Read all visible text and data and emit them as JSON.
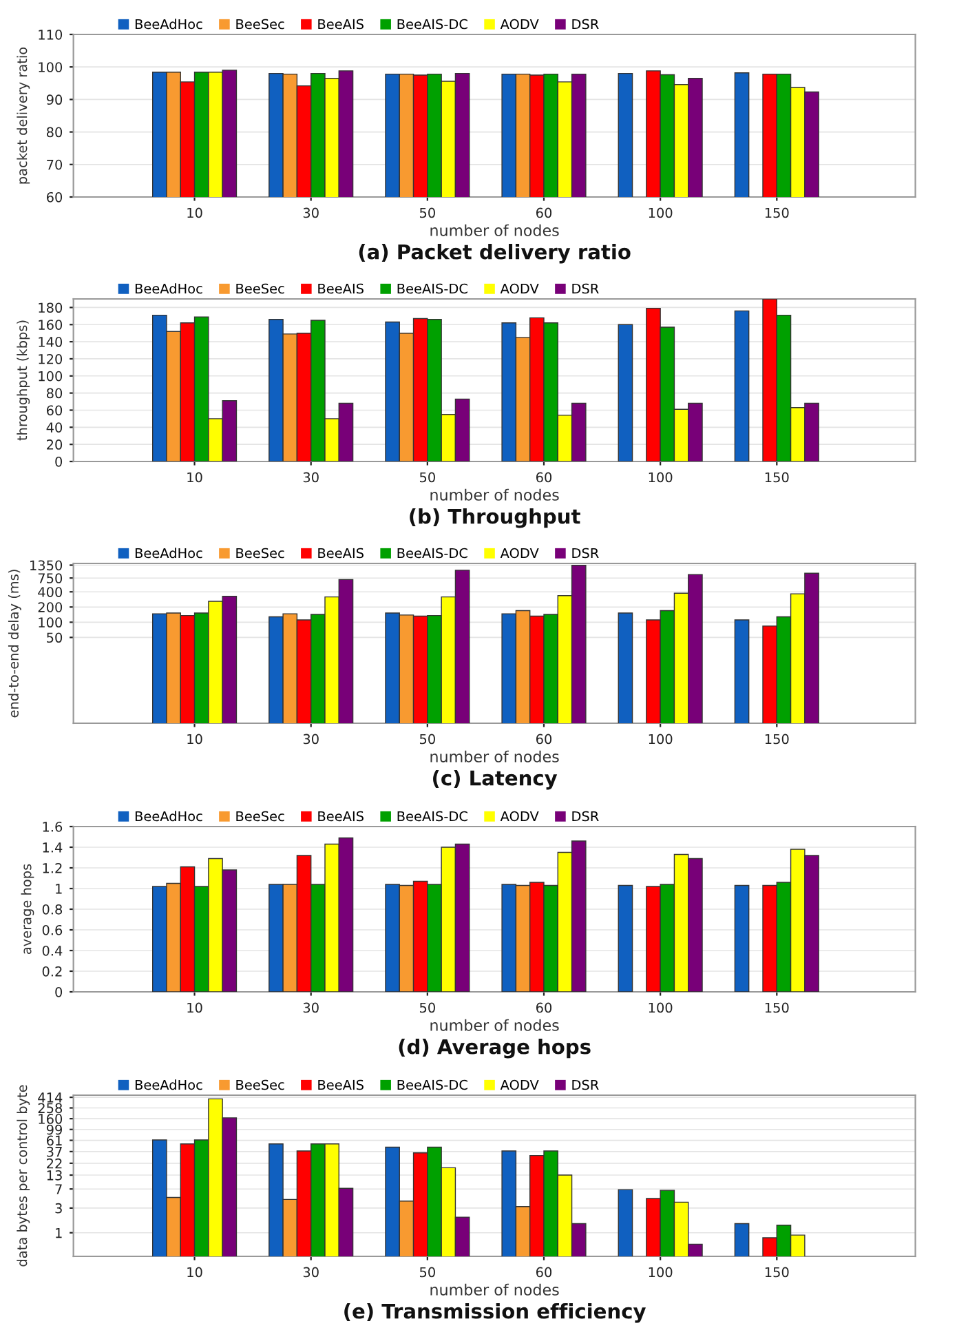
{
  "chart_data": [
    {
      "type": "bar",
      "title": "(a) Packet delivery ratio",
      "xlabel": "number of nodes",
      "ylabel": "packet delivery ratio",
      "categories": [
        "10",
        "30",
        "50",
        "60",
        "100",
        "150"
      ],
      "ylim": [
        60,
        110
      ],
      "yticks": [
        60,
        70,
        80,
        90,
        100,
        110
      ],
      "grid": "y",
      "legend": "top",
      "series": [
        {
          "name": "BeeAdHoc",
          "color": "#1060c0",
          "values": [
            98.4,
            98.0,
            97.8,
            97.8,
            98.0,
            98.2
          ]
        },
        {
          "name": "BeeSec",
          "color": "#f89a30",
          "values": [
            98.4,
            97.8,
            97.8,
            97.8,
            null,
            null
          ]
        },
        {
          "name": "BeeAIS",
          "color": "#ff0000",
          "values": [
            95.4,
            94.2,
            97.5,
            97.5,
            98.8,
            97.8
          ]
        },
        {
          "name": "BeeAIS-DC",
          "color": "#00a000",
          "values": [
            98.4,
            98.0,
            97.8,
            97.8,
            97.6,
            97.8
          ]
        },
        {
          "name": "AODV",
          "color": "#ffff00",
          "values": [
            98.4,
            96.5,
            95.6,
            95.4,
            94.6,
            93.7
          ]
        },
        {
          "name": "DSR",
          "color": "#780078",
          "values": [
            99.0,
            98.8,
            98.0,
            97.8,
            96.5,
            92.3
          ]
        }
      ]
    },
    {
      "type": "bar",
      "title": "(b) Throughput",
      "xlabel": "number of nodes",
      "ylabel": "throughput (kbps)",
      "categories": [
        "10",
        "30",
        "50",
        "60",
        "100",
        "150"
      ],
      "ylim": [
        0,
        190
      ],
      "yticks": [
        0,
        20,
        40,
        60,
        80,
        100,
        120,
        140,
        160,
        180
      ],
      "grid": "y",
      "legend": "top",
      "series": [
        {
          "name": "BeeAdHoc",
          "color": "#1060c0",
          "values": [
            171,
            166,
            163,
            162,
            160,
            176
          ]
        },
        {
          "name": "BeeSec",
          "color": "#f89a30",
          "values": [
            152,
            149,
            150,
            145,
            null,
            null
          ]
        },
        {
          "name": "BeeAIS",
          "color": "#ff0000",
          "values": [
            162,
            150,
            167,
            168,
            179,
            190
          ]
        },
        {
          "name": "BeeAIS-DC",
          "color": "#00a000",
          "values": [
            169,
            165,
            166,
            162,
            157,
            171
          ]
        },
        {
          "name": "AODV",
          "color": "#ffff00",
          "values": [
            50,
            50,
            55,
            54,
            61,
            63
          ]
        },
        {
          "name": "DSR",
          "color": "#780078",
          "values": [
            71,
            68,
            73,
            68,
            68,
            68
          ]
        }
      ]
    },
    {
      "type": "bar",
      "title": "(c) Latency",
      "xlabel": "number of nodes",
      "ylabel": "end-to-end delay (ms)",
      "categories": [
        "10",
        "30",
        "50",
        "60",
        "100",
        "150"
      ],
      "log": "y",
      "ylim": [
        1,
        1460
      ],
      "yticks": [
        50,
        100,
        200,
        400,
        750,
        1350
      ],
      "grid": "y",
      "legend": "top",
      "series": [
        {
          "name": "BeeAdHoc",
          "color": "#1060c0",
          "values": [
            147,
            128,
            152,
            147,
            152,
            111
          ]
        },
        {
          "name": "BeeSec",
          "color": "#f89a30",
          "values": [
            152,
            147,
            139,
            170,
            null,
            null
          ]
        },
        {
          "name": "BeeAIS",
          "color": "#ff0000",
          "values": [
            136,
            111,
            132,
            132,
            111,
            84
          ]
        },
        {
          "name": "BeeAIS-DC",
          "color": "#00a000",
          "values": [
            152,
            143,
            136,
            143,
            170,
            128
          ]
        },
        {
          "name": "AODV",
          "color": "#ffff00",
          "values": [
            259,
            317,
            317,
            336,
            376,
            365
          ]
        },
        {
          "name": "DSR",
          "color": "#780078",
          "values": [
            326,
            700,
            1072,
            1340,
            880,
            933
          ]
        }
      ]
    },
    {
      "type": "bar",
      "title": "(d) Average hops",
      "xlabel": "number of nodes",
      "ylabel": "average hops",
      "categories": [
        "10",
        "30",
        "50",
        "60",
        "100",
        "150"
      ],
      "ylim": [
        0,
        1.6
      ],
      "yticks": [
        0,
        0.2,
        0.4,
        0.6,
        0.8,
        1,
        1.2,
        1.4,
        1.6
      ],
      "grid": "y",
      "legend": "top",
      "series": [
        {
          "name": "BeeAdHoc",
          "color": "#1060c0",
          "values": [
            1.02,
            1.04,
            1.04,
            1.04,
            1.03,
            1.03
          ]
        },
        {
          "name": "BeeSec",
          "color": "#f89a30",
          "values": [
            1.05,
            1.04,
            1.03,
            1.03,
            null,
            null
          ]
        },
        {
          "name": "BeeAIS",
          "color": "#ff0000",
          "values": [
            1.21,
            1.32,
            1.07,
            1.06,
            1.02,
            1.03
          ]
        },
        {
          "name": "BeeAIS-DC",
          "color": "#00a000",
          "values": [
            1.02,
            1.04,
            1.04,
            1.03,
            1.04,
            1.06
          ]
        },
        {
          "name": "AODV",
          "color": "#ffff00",
          "values": [
            1.29,
            1.43,
            1.4,
            1.35,
            1.33,
            1.38
          ]
        },
        {
          "name": "DSR",
          "color": "#780078",
          "values": [
            1.18,
            1.49,
            1.43,
            1.46,
            1.29,
            1.32
          ]
        }
      ]
    },
    {
      "type": "bar",
      "title": "(e) Transmission efficiency",
      "xlabel": "number of nodes",
      "ylabel": "data bytes per control byte",
      "categories": [
        "10",
        "30",
        "50",
        "60",
        "100",
        "150"
      ],
      "log": "y",
      "ylim": [
        0.35,
        455
      ],
      "yticks": [
        1,
        3,
        7,
        13,
        22,
        37,
        61,
        99,
        160,
        258,
        414
      ],
      "grid": "y",
      "legend": "top",
      "series": [
        {
          "name": "BeeAdHoc",
          "color": "#1060c0",
          "values": [
            62,
            52,
            45,
            38,
            6.8,
            1.5
          ]
        },
        {
          "name": "BeeSec",
          "color": "#f89a30",
          "values": [
            4.8,
            4.4,
            4.1,
            3.2,
            null,
            null
          ]
        },
        {
          "name": "BeeAIS",
          "color": "#ff0000",
          "values": [
            52,
            38,
            35,
            31,
            4.6,
            0.8
          ]
        },
        {
          "name": "BeeAIS-DC",
          "color": "#00a000",
          "values": [
            62,
            52,
            45,
            38,
            6.6,
            1.4
          ]
        },
        {
          "name": "AODV",
          "color": "#ffff00",
          "values": [
            386,
            52,
            18,
            13,
            3.9,
            0.9
          ]
        },
        {
          "name": "DSR",
          "color": "#780078",
          "values": [
            166,
            7.2,
            2,
            1.5,
            0.6,
            null
          ]
        }
      ]
    }
  ]
}
